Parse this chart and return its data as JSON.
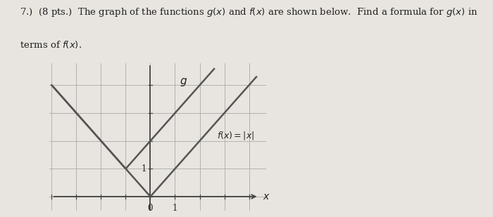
{
  "text_line1": "7.)  (8 pts.)  The graph of the functions $g(x)$ and $f(x)$ are shown below.  Find a formula for $g(x)$ in",
  "text_line2": "terms of $f(x)$.",
  "xlabel": "$x$",
  "f_label": "$f(x) = |x|$",
  "g_label": "$g$",
  "axis_color": "#444444",
  "grid_color": "#aaaaaa",
  "curve_color": "#555555",
  "background_color": "#e8e5e0",
  "fig_bg": "#e8e5e0",
  "text_color": "#222222",
  "xlim": [
    -4,
    4
  ],
  "ylim": [
    -0.5,
    4.5
  ],
  "g_vertex_x": -1,
  "g_vertex_y": 1,
  "g_slope": 1,
  "f_vertex_x": 0,
  "f_vertex_y": 0,
  "f_slope": 1
}
